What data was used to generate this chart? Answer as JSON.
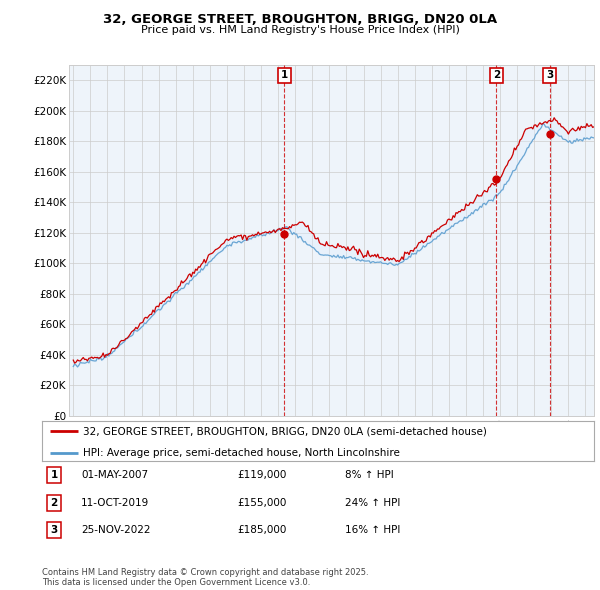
{
  "title1": "32, GEORGE STREET, BROUGHTON, BRIGG, DN20 0LA",
  "title2": "Price paid vs. HM Land Registry's House Price Index (HPI)",
  "ylim": [
    0,
    230000
  ],
  "yticks": [
    0,
    20000,
    40000,
    60000,
    80000,
    100000,
    120000,
    140000,
    160000,
    180000,
    200000,
    220000
  ],
  "ytick_labels": [
    "£0",
    "£20K",
    "£40K",
    "£60K",
    "£80K",
    "£100K",
    "£120K",
    "£140K",
    "£160K",
    "£180K",
    "£200K",
    "£220K"
  ],
  "xlim_start": 1994.75,
  "xlim_end": 2025.5,
  "price_color": "#cc0000",
  "hpi_color": "#5599cc",
  "fill_color": "#ddeeff",
  "chart_bg": "#eef4fa",
  "legend_label_price": "32, GEORGE STREET, BROUGHTON, BRIGG, DN20 0LA (semi-detached house)",
  "legend_label_hpi": "HPI: Average price, semi-detached house, North Lincolnshire",
  "sale1_date": "01-MAY-2007",
  "sale1_price": "£119,000",
  "sale1_hpi": "8% ↑ HPI",
  "sale1_x": 2007.37,
  "sale1_y": 119000,
  "sale2_date": "11-OCT-2019",
  "sale2_price": "£155,000",
  "sale2_hpi": "24% ↑ HPI",
  "sale2_x": 2019.78,
  "sale2_y": 155000,
  "sale3_date": "25-NOV-2022",
  "sale3_price": "£185,000",
  "sale3_hpi": "16% ↑ HPI",
  "sale3_x": 2022.9,
  "sale3_y": 185000,
  "footnote": "Contains HM Land Registry data © Crown copyright and database right 2025.\nThis data is licensed under the Open Government Licence v3.0.",
  "background_color": "#ffffff",
  "grid_color": "#cccccc",
  "fig_width": 6.0,
  "fig_height": 5.9
}
